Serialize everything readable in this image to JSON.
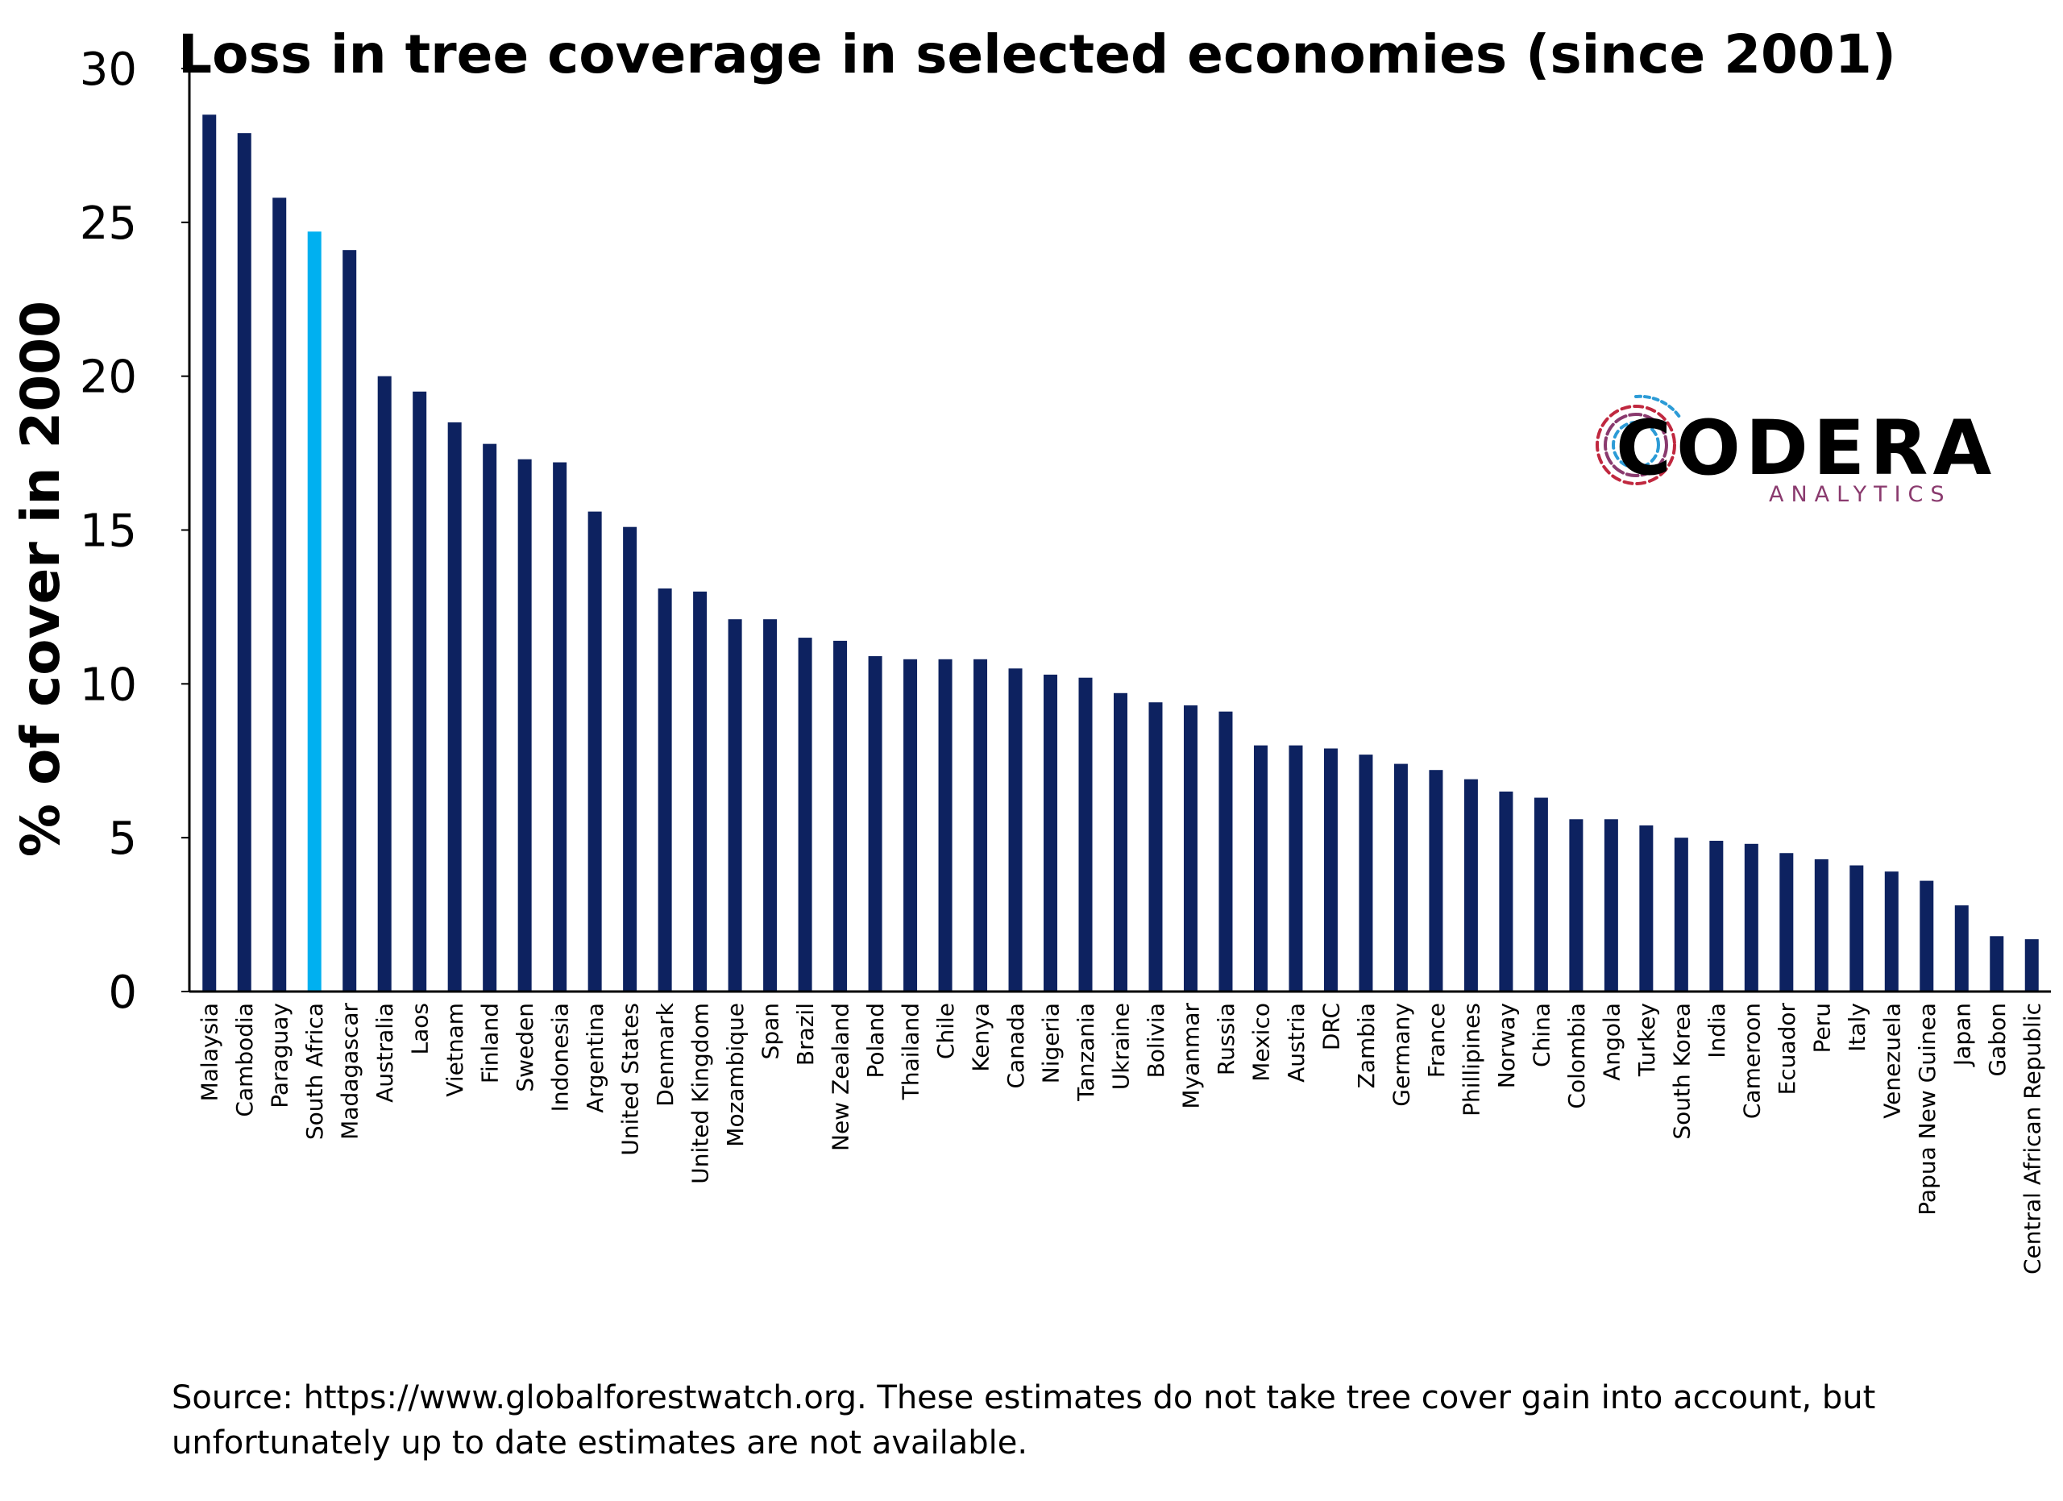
{
  "chart_data": {
    "type": "bar",
    "title": "Loss in tree coverage in selected economies (since 2001)",
    "xlabel": "",
    "ylabel": "% of cover in 2000",
    "ylim": [
      0,
      30
    ],
    "yticks": [
      0,
      5,
      10,
      15,
      20,
      25,
      30
    ],
    "grid": false,
    "bar_color": "#0d2260",
    "highlight_color": "#00b0f0",
    "highlight_category": "South Africa",
    "categories": [
      "Malaysia",
      "Cambodia",
      "Paraguay",
      "South Africa",
      "Madagascar",
      "Australia",
      "Laos",
      "Vietnam",
      "Finland",
      "Sweden",
      "Indonesia",
      "Argentina",
      "United States",
      "Denmark",
      "United Kingdom",
      "Mozambique",
      "Span",
      "Brazil",
      "New Zealand",
      "Poland",
      "Thailand",
      "Chile",
      "Kenya",
      "Canada",
      "Nigeria",
      "Tanzania",
      "Ukraine",
      "Bolivia",
      "Myanmar",
      "Russia",
      "Mexico",
      "Austria",
      "DRC",
      "Zambia",
      "Germany",
      "France",
      "Phillipines",
      "Norway",
      "China",
      "Colombia",
      "Angola",
      "Turkey",
      "South Korea",
      "India",
      "Cameroon",
      "Ecuador",
      "Peru",
      "Italy",
      "Venezuela",
      "Papua New Guinea",
      "Japan",
      "Gabon",
      "Central African Republic"
    ],
    "values": [
      28.5,
      27.9,
      25.8,
      24.7,
      24.1,
      20.0,
      19.5,
      18.5,
      17.8,
      17.3,
      17.2,
      15.6,
      15.1,
      13.1,
      13.0,
      12.1,
      12.1,
      11.5,
      11.4,
      10.9,
      10.8,
      10.8,
      10.8,
      10.5,
      10.3,
      10.2,
      9.7,
      9.4,
      9.3,
      9.1,
      8.0,
      8.0,
      7.9,
      7.7,
      7.4,
      7.2,
      6.9,
      6.5,
      6.3,
      5.6,
      5.6,
      5.4,
      5.0,
      4.9,
      4.8,
      4.5,
      4.3,
      4.1,
      3.9,
      3.6,
      2.8,
      1.8,
      1.7
    ]
  },
  "logo": {
    "name": "CODERA",
    "tagline": "ANALYTICS",
    "colors": [
      "#c0283f",
      "#2c9bd6",
      "#8a3a6e"
    ]
  },
  "footer": {
    "source_line1": "Source: https://www.globalforestwatch.org. These estimates do not take tree cover gain into account, but",
    "source_line2": "unfortunately up to date estimates are not available."
  }
}
